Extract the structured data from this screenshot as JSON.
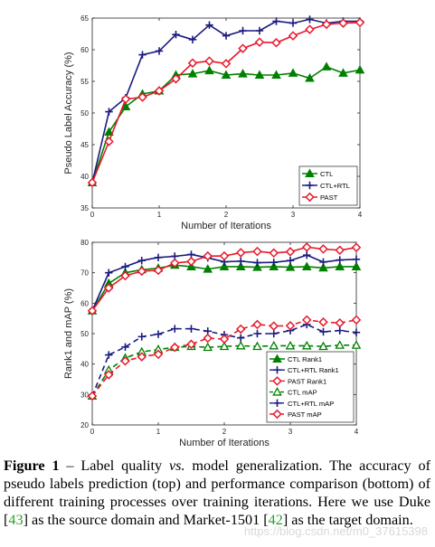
{
  "chart_data": [
    {
      "type": "line",
      "title": "",
      "xlabel": "Number of Iterations",
      "ylabel": "Pseudo Label Accuracy (%)",
      "xlim": [
        0,
        4
      ],
      "ylim": [
        35,
        65
      ],
      "xticks": [
        0,
        1,
        2,
        3,
        4
      ],
      "yticks": [
        35,
        40,
        45,
        50,
        55,
        60,
        65
      ],
      "grid": false,
      "legend_position": "bottom-right",
      "x": [
        0,
        0.25,
        0.5,
        0.75,
        1,
        1.25,
        1.5,
        1.75,
        2,
        2.25,
        2.5,
        2.75,
        3,
        3.25,
        3.5,
        3.75,
        4
      ],
      "series": [
        {
          "name": "CTL",
          "color": "#008000",
          "marker": "triangle",
          "dash": "solid",
          "values": [
            39.0,
            47.0,
            51.0,
            53.0,
            53.5,
            56.0,
            56.2,
            56.7,
            56.0,
            56.2,
            56.0,
            56.0,
            56.3,
            55.5,
            57.3,
            56.3,
            56.8
          ]
        },
        {
          "name": "CTL+RTL",
          "color": "#1a1a80",
          "marker": "plus",
          "dash": "solid",
          "values": [
            39.0,
            50.2,
            52.4,
            59.2,
            59.8,
            62.4,
            61.6,
            63.9,
            62.2,
            63.0,
            63.0,
            64.5,
            64.2,
            64.8,
            64.2,
            64.5,
            64.5
          ]
        },
        {
          "name": "PAST",
          "color": "#e8192c",
          "marker": "diamond",
          "dash": "solid",
          "values": [
            39.0,
            45.5,
            52.2,
            52.5,
            53.5,
            55.4,
            57.9,
            58.2,
            57.8,
            60.2,
            61.2,
            61.1,
            62.2,
            63.2,
            64.0,
            64.2,
            64.3
          ]
        }
      ]
    },
    {
      "type": "line",
      "title": "",
      "xlabel": "Number of Iterations",
      "ylabel": "Rank1 and mAP (%)",
      "xlim": [
        0,
        4
      ],
      "ylim": [
        20,
        80
      ],
      "xticks": [
        0,
        1,
        2,
        3,
        4
      ],
      "yticks": [
        20,
        30,
        40,
        50,
        60,
        70,
        80
      ],
      "grid": false,
      "legend_position": "bottom-right",
      "x": [
        0,
        0.25,
        0.5,
        0.75,
        1,
        1.25,
        1.5,
        1.75,
        2,
        2.25,
        2.5,
        2.75,
        3,
        3.25,
        3.5,
        3.75,
        4
      ],
      "series": [
        {
          "name": "CTL Rank1",
          "color": "#008000",
          "marker": "triangle",
          "dash": "solid",
          "values": [
            57.5,
            66.5,
            70.0,
            71.0,
            71.5,
            72.5,
            72.0,
            71.2,
            72.0,
            72.0,
            71.8,
            72.0,
            71.8,
            72.0,
            71.6,
            72.0,
            72.0
          ]
        },
        {
          "name": "CTL+RTL Rank1",
          "color": "#1a1a80",
          "marker": "plus",
          "dash": "solid",
          "values": [
            57.5,
            70.0,
            72.0,
            74.0,
            75.0,
            75.4,
            76.0,
            74.9,
            73.6,
            73.8,
            73.3,
            73.4,
            74.0,
            75.8,
            73.5,
            74.2,
            74.4
          ]
        },
        {
          "name": "PAST Rank1",
          "color": "#e8192c",
          "marker": "diamond",
          "dash": "solid",
          "values": [
            57.5,
            65.0,
            69.0,
            70.5,
            70.8,
            73.2,
            73.7,
            75.5,
            75.5,
            76.6,
            77.0,
            76.5,
            76.9,
            78.4,
            77.8,
            77.4,
            78.3
          ]
        },
        {
          "name": "CTL mAP",
          "color": "#008000",
          "marker": "triangle-open",
          "dash": "dashed",
          "values": [
            29.5,
            38.0,
            42.0,
            44.0,
            44.8,
            45.5,
            45.8,
            45.5,
            45.8,
            46.0,
            45.8,
            46.0,
            46.0,
            46.0,
            45.8,
            46.2,
            46.2
          ]
        },
        {
          "name": "CTL+RTL mAP",
          "color": "#1a1a80",
          "marker": "plus",
          "dash": "dashed",
          "values": [
            29.5,
            43.0,
            45.6,
            49.0,
            49.8,
            51.6,
            51.6,
            50.8,
            49.6,
            48.6,
            50.0,
            50.0,
            51.0,
            53.0,
            50.6,
            51.0,
            50.4
          ]
        },
        {
          "name": "PAST mAP",
          "color": "#e8192c",
          "marker": "diamond-open",
          "dash": "dashed",
          "values": [
            29.5,
            36.5,
            41.0,
            42.4,
            43.2,
            45.5,
            46.5,
            48.5,
            48.2,
            51.5,
            53.0,
            52.5,
            52.6,
            54.5,
            53.8,
            53.5,
            54.5
          ]
        }
      ]
    }
  ],
  "caption": {
    "label": "Figure 1",
    "body_part1": " – Label quality ",
    "vs": "vs.",
    "body_part2": " model generalization. The accuracy of pseudo labels prediction (top) and performance comparison (bottom) of different training processes over training iterations. Here we use Duke [",
    "ref1": "43",
    "body_part3": "] as the source domain and Market-1501 [",
    "ref2": "42",
    "body_part4": "] as the target domain."
  },
  "watermark": "https://blog.csdn.net/m0_37615398"
}
